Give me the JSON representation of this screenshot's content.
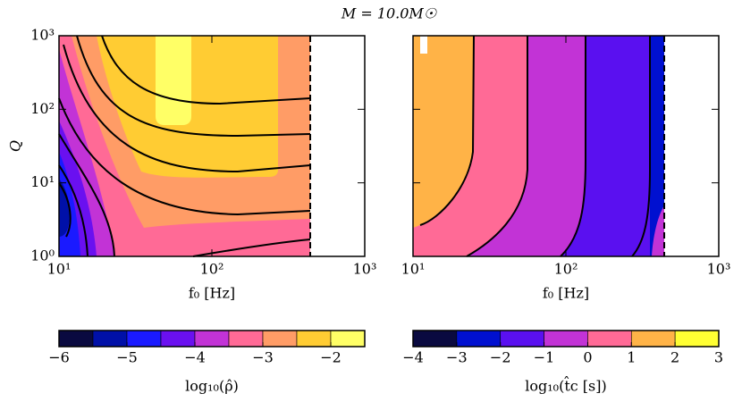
{
  "title": "M = 10.0M☉",
  "chart_data": [
    {
      "type": "contour",
      "xlabel": "f₀ [Hz]",
      "ylabel": "Q",
      "log": true,
      "xlim": [
        10,
        1000
      ],
      "ylim": [
        1,
        1000
      ],
      "xticks": [
        {
          "value": 10,
          "label": "10¹"
        },
        {
          "value": 100,
          "label": "10²"
        },
        {
          "value": 1000,
          "label": "10³"
        }
      ],
      "yticks": [
        {
          "value": 1,
          "label": "10⁰"
        },
        {
          "value": 10,
          "label": "10¹"
        },
        {
          "value": 100,
          "label": "10²"
        },
        {
          "value": 1000,
          "label": "10³"
        }
      ],
      "cutoff": 440,
      "colorbar": {
        "label": "log₁₀(ρ̂)",
        "levels": [
          -6,
          -5.5,
          -5,
          -4.5,
          -4,
          -3.5,
          -3,
          -2.5,
          -2,
          -1.5
        ],
        "colors": [
          "#0a0a40",
          "#0010a8",
          "#1a1aff",
          "#6a10f0",
          "#c233d6",
          "#ff6a96",
          "#ff9c66",
          "#ffcc33",
          "#ffff66"
        ],
        "ticks": [
          {
            "value": -6,
            "label": "−6"
          },
          {
            "value": -5,
            "label": "−5"
          },
          {
            "value": -4,
            "label": "−4"
          },
          {
            "value": -3,
            "label": "−3"
          },
          {
            "value": -2,
            "label": "−2"
          }
        ]
      }
    },
    {
      "type": "contour",
      "xlabel": "f₀ [Hz]",
      "log": true,
      "xlim": [
        10,
        1000
      ],
      "ylim": [
        1,
        1000
      ],
      "xticks": [
        {
          "value": 10,
          "label": "10¹"
        },
        {
          "value": 100,
          "label": "10²"
        },
        {
          "value": 1000,
          "label": "10³"
        }
      ],
      "yticks": [
        1,
        10,
        100,
        1000
      ],
      "cutoff": 440,
      "colorbar": {
        "label": "log₁₀(t̂c [s])",
        "levels": [
          -4,
          -3,
          -2,
          -1,
          0,
          1,
          2,
          3
        ],
        "colors": [
          "#0a0a40",
          "#0010d0",
          "#5a10f0",
          "#c233d6",
          "#ff6a96",
          "#ffb347",
          "#ffff33"
        ],
        "ticks": [
          {
            "value": -4,
            "label": "−4"
          },
          {
            "value": -3,
            "label": "−3"
          },
          {
            "value": -2,
            "label": "−2"
          },
          {
            "value": -1,
            "label": "−1"
          },
          0,
          1,
          2,
          3
        ]
      }
    }
  ]
}
